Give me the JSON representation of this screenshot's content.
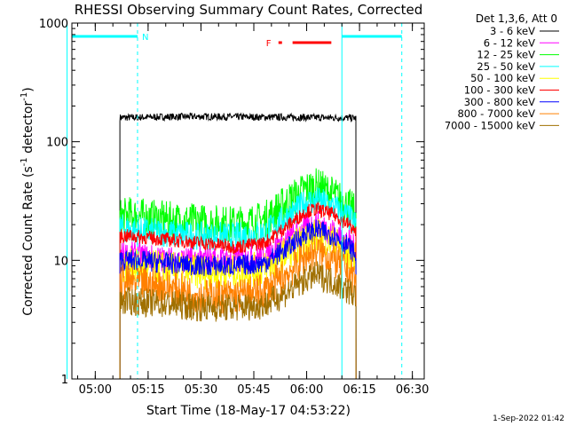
{
  "chart_data": {
    "type": "line",
    "title": "RHESSI Observing Summary Count Rates, Corrected",
    "xlabel": "Start Time (18-May-17 04:53:22)",
    "ylabel_main": "Corrected Count Rate (s",
    "ylabel_sup1": "-1",
    "ylabel_mid": " detector",
    "ylabel_sup2": "-1",
    "ylabel_end": ")",
    "yscale": "log",
    "xlim": [
      "04:53:22",
      "06:33:22"
    ],
    "ylim": [
      1,
      1000
    ],
    "x_ticks": [
      "05:00",
      "05:15",
      "05:30",
      "05:45",
      "06:00",
      "06:15",
      "06:30"
    ],
    "y_ticks": [
      {
        "value": 1,
        "label": "1"
      },
      {
        "value": 10,
        "label": "10"
      },
      {
        "value": 100,
        "label": "100"
      },
      {
        "value": 1000,
        "label": "1000"
      }
    ],
    "legend": {
      "placement": "right",
      "header": "Det 1,3,6, Att 0",
      "entries": [
        {
          "label": "3 - 6 keV",
          "color": "#000000"
        },
        {
          "label": "6 - 12 keV",
          "color": "#ff00ff"
        },
        {
          "label": "12 - 25 keV",
          "color": "#00ff00"
        },
        {
          "label": "25 - 50 keV",
          "color": "#00ffff"
        },
        {
          "label": "50 - 100 keV",
          "color": "#ffff00"
        },
        {
          "label": "100 - 300 keV",
          "color": "#ff0000"
        },
        {
          "label": "300 - 800 keV",
          "color": "#0000ff"
        },
        {
          "label": "800 - 7000 keV",
          "color": "#ff8000"
        },
        {
          "label": "7000 - 15000 keV",
          "color": "#a07000"
        }
      ]
    },
    "flag_labels": {
      "night": "N",
      "flare": "F"
    },
    "night_intervals": [
      {
        "start": "04:52",
        "end": "05:12",
        "color": "#00ffff"
      },
      {
        "start": "06:10",
        "end": "06:27",
        "color": "#00ffff"
      }
    ],
    "flare_intervals": [
      {
        "start": "05:52",
        "end": "05:53",
        "color": "#ff0000"
      },
      {
        "start": "05:56",
        "end": "06:07",
        "color": "#ff0000"
      }
    ],
    "series": [
      {
        "name": "3 - 6 keV",
        "color": "#000000",
        "start": "05:07",
        "end": "06:14",
        "x": [
          "05:07",
          "05:10",
          "05:20",
          "05:30",
          "05:40",
          "05:50",
          "06:00",
          "06:10",
          "06:14"
        ],
        "values": [
          160,
          160,
          162,
          163,
          162,
          161,
          160,
          159,
          158
        ],
        "noise": 0.03
      },
      {
        "name": "12 - 25 keV",
        "color": "#00ff00",
        "start": "05:07",
        "end": "06:14",
        "x": [
          "05:07",
          "05:10",
          "05:20",
          "05:30",
          "05:40",
          "05:48",
          "05:55",
          "06:00",
          "06:03",
          "06:08",
          "06:12",
          "06:14"
        ],
        "values": [
          23,
          24,
          22,
          21,
          20,
          22,
          32,
          40,
          42,
          35,
          28,
          25
        ],
        "noise": 0.16
      },
      {
        "name": "25 - 50 keV",
        "color": "#00ffff",
        "start": "05:07",
        "end": "06:14",
        "x": [
          "05:07",
          "05:10",
          "05:20",
          "05:30",
          "05:40",
          "05:48",
          "05:55",
          "06:00",
          "06:03",
          "06:08",
          "06:12",
          "06:14"
        ],
        "values": [
          19,
          18,
          17,
          16,
          16,
          17,
          24,
          31,
          32,
          28,
          23,
          20
        ],
        "noise": 0.12
      },
      {
        "name": "6 - 12 keV",
        "color": "#ff00ff",
        "start": "05:07",
        "end": "06:14",
        "x": [
          "05:07",
          "05:10",
          "05:20",
          "05:30",
          "05:40",
          "05:48",
          "05:55",
          "06:00",
          "06:03",
          "06:08",
          "06:12",
          "06:14"
        ],
        "values": [
          11,
          11,
          10,
          10,
          10,
          11,
          15,
          19,
          20,
          17,
          14,
          12
        ],
        "noise": 0.12
      },
      {
        "name": "50 - 100 keV",
        "color": "#ffff00",
        "start": "05:07",
        "end": "06:14",
        "x": [
          "05:07",
          "05:10",
          "05:20",
          "05:30",
          "05:40",
          "05:48",
          "05:55",
          "06:00",
          "06:03",
          "06:08",
          "06:12",
          "06:14"
        ],
        "values": [
          9,
          9,
          8.5,
          8,
          8,
          8.5,
          12,
          15,
          16,
          14,
          11,
          10
        ],
        "noise": 0.15
      },
      {
        "name": "100 - 300 keV",
        "color": "#ff0000",
        "start": "05:07",
        "end": "06:14",
        "x": [
          "05:07",
          "05:10",
          "05:20",
          "05:30",
          "05:40",
          "05:48",
          "05:55",
          "06:00",
          "06:03",
          "06:08",
          "06:12",
          "06:14"
        ],
        "values": [
          16,
          16,
          15,
          14,
          13,
          14,
          20,
          26,
          27,
          24,
          20,
          17
        ],
        "noise": 0.06
      },
      {
        "name": "300 - 800 keV",
        "color": "#0000ff",
        "start": "05:07",
        "end": "06:14",
        "x": [
          "05:07",
          "05:10",
          "05:20",
          "05:30",
          "05:40",
          "05:48",
          "05:55",
          "06:00",
          "06:03",
          "06:08",
          "06:12",
          "06:14"
        ],
        "values": [
          10,
          10,
          9.5,
          9,
          9,
          9.5,
          13,
          17,
          18,
          16,
          13,
          11
        ],
        "noise": 0.09
      },
      {
        "name": "800 - 7000 keV",
        "color": "#ff8000",
        "start": "05:07",
        "end": "06:14",
        "x": [
          "05:07",
          "05:10",
          "05:20",
          "05:30",
          "05:40",
          "05:48",
          "05:55",
          "06:00",
          "06:03",
          "06:08",
          "06:12",
          "06:14"
        ],
        "values": [
          6.5,
          6.5,
          6,
          5,
          5,
          5.5,
          8,
          11,
          12,
          10,
          8,
          7
        ],
        "noise": 0.15
      },
      {
        "name": "7000 - 15000 keV",
        "color": "#a07000",
        "start": "05:07",
        "end": "06:14",
        "x": [
          "05:07",
          "05:10",
          "05:20",
          "05:30",
          "05:40",
          "05:48",
          "05:55",
          "06:00",
          "06:03",
          "06:08",
          "06:12",
          "06:14"
        ],
        "values": [
          4.5,
          4.5,
          4.3,
          4,
          4,
          4.2,
          5.5,
          7,
          7.5,
          6.5,
          5.5,
          5
        ],
        "noise": 0.12
      }
    ],
    "footer": "1-Sep-2022 01:42"
  }
}
